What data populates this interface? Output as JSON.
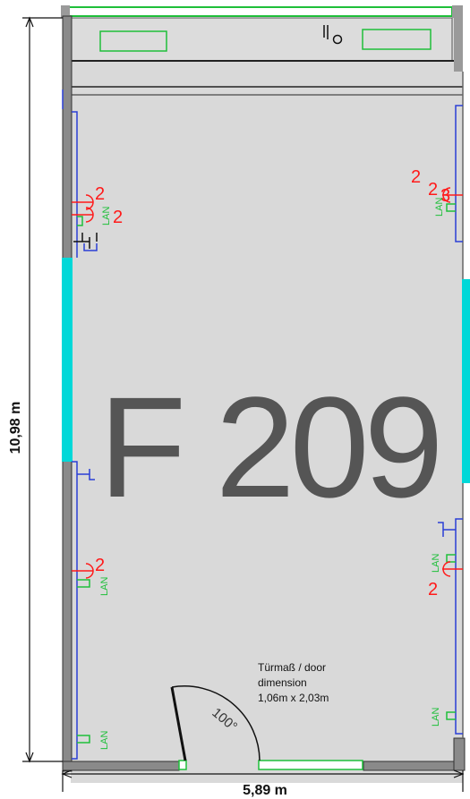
{
  "room": {
    "number": "F 209",
    "door_note_line1": "Türmaß / door",
    "door_note_line2": "dimension",
    "door_note_line3": "1,06m x 2,03m",
    "door_angle": "100°"
  },
  "dimensions": {
    "height_label": "10,98 m",
    "width_label": "5,89 m"
  },
  "outlet_labels": {
    "lan": "LAN",
    "count": "2",
    "count_alt": "3"
  },
  "colors": {
    "floor": "#d9d9d9",
    "wall": "#8a8a8a",
    "window_cyan": "#00d8d8",
    "green": "#1fbf3a",
    "red": "#ff1a1a",
    "blue": "#2a3fd6",
    "room_text": "#555555"
  }
}
